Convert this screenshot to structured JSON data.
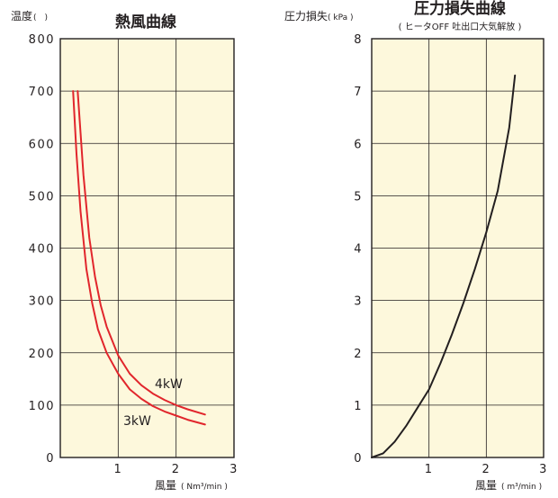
{
  "colors": {
    "plot_background": "#fdf8dc",
    "grid": "#231f20",
    "heat_curves": "#e1262c",
    "pressure_curve": "#231f20"
  },
  "chart_data": [
    {
      "type": "line",
      "title": "熱風曲線",
      "ylabel": "温度",
      "ylabel_unit": "(　)",
      "xlabel": "風量",
      "xlabel_unit": "( Nm³/min )",
      "xlim": [
        0,
        3
      ],
      "ylim": [
        0,
        800
      ],
      "x_ticks": [
        0,
        1,
        2,
        3
      ],
      "y_ticks": [
        0,
        100,
        200,
        300,
        400,
        500,
        600,
        700,
        800
      ],
      "x_tick_labels": [
        "1",
        "2",
        "3"
      ],
      "y_tick_labels": [
        "0",
        "100",
        "200",
        "300",
        "400",
        "500",
        "600",
        "700",
        "800"
      ],
      "grid": true,
      "series": [
        {
          "name": "4kW",
          "points": [
            [
              0.3,
              700
            ],
            [
              0.35,
              620
            ],
            [
              0.4,
              540
            ],
            [
              0.5,
              420
            ],
            [
              0.6,
              345
            ],
            [
              0.7,
              290
            ],
            [
              0.8,
              250
            ],
            [
              1.0,
              195
            ],
            [
              1.2,
              160
            ],
            [
              1.4,
              138
            ],
            [
              1.6,
              122
            ],
            [
              1.8,
              110
            ],
            [
              2.0,
              100
            ],
            [
              2.2,
              92
            ],
            [
              2.5,
              82
            ]
          ]
        },
        {
          "name": "3kW",
          "points": [
            [
              0.22,
              700
            ],
            [
              0.28,
              580
            ],
            [
              0.35,
              470
            ],
            [
              0.45,
              360
            ],
            [
              0.55,
              295
            ],
            [
              0.65,
              245
            ],
            [
              0.8,
              200
            ],
            [
              1.0,
              160
            ],
            [
              1.2,
              130
            ],
            [
              1.4,
              112
            ],
            [
              1.6,
              98
            ],
            [
              1.8,
              88
            ],
            [
              2.0,
              80
            ],
            [
              2.2,
              72
            ],
            [
              2.5,
              63
            ]
          ]
        }
      ]
    },
    {
      "type": "line",
      "title": "圧力損失曲線",
      "subtitle": "( ヒータOFF 吐出口大気解放 )",
      "ylabel": "圧力損失",
      "ylabel_unit": "( kPa )",
      "xlabel": "風量",
      "xlabel_unit": "( m³/min )",
      "xlim": [
        0,
        3
      ],
      "ylim": [
        0,
        8
      ],
      "x_ticks": [
        0,
        1,
        2,
        3
      ],
      "y_ticks": [
        0,
        1,
        2,
        3,
        4,
        5,
        6,
        7,
        8
      ],
      "x_tick_labels": [
        "1",
        "2",
        "3"
      ],
      "y_tick_labels": [
        "0",
        "1",
        "2",
        "3",
        "4",
        "5",
        "6",
        "7",
        "8"
      ],
      "grid": true,
      "series": [
        {
          "points": [
            [
              0.0,
              0.0
            ],
            [
              0.2,
              0.08
            ],
            [
              0.4,
              0.3
            ],
            [
              0.6,
              0.6
            ],
            [
              0.8,
              0.95
            ],
            [
              1.0,
              1.3
            ],
            [
              1.2,
              1.8
            ],
            [
              1.4,
              2.35
            ],
            [
              1.6,
              2.95
            ],
            [
              1.8,
              3.6
            ],
            [
              2.0,
              4.3
            ],
            [
              2.2,
              5.1
            ],
            [
              2.4,
              6.3
            ],
            [
              2.5,
              7.3
            ]
          ]
        }
      ]
    }
  ]
}
